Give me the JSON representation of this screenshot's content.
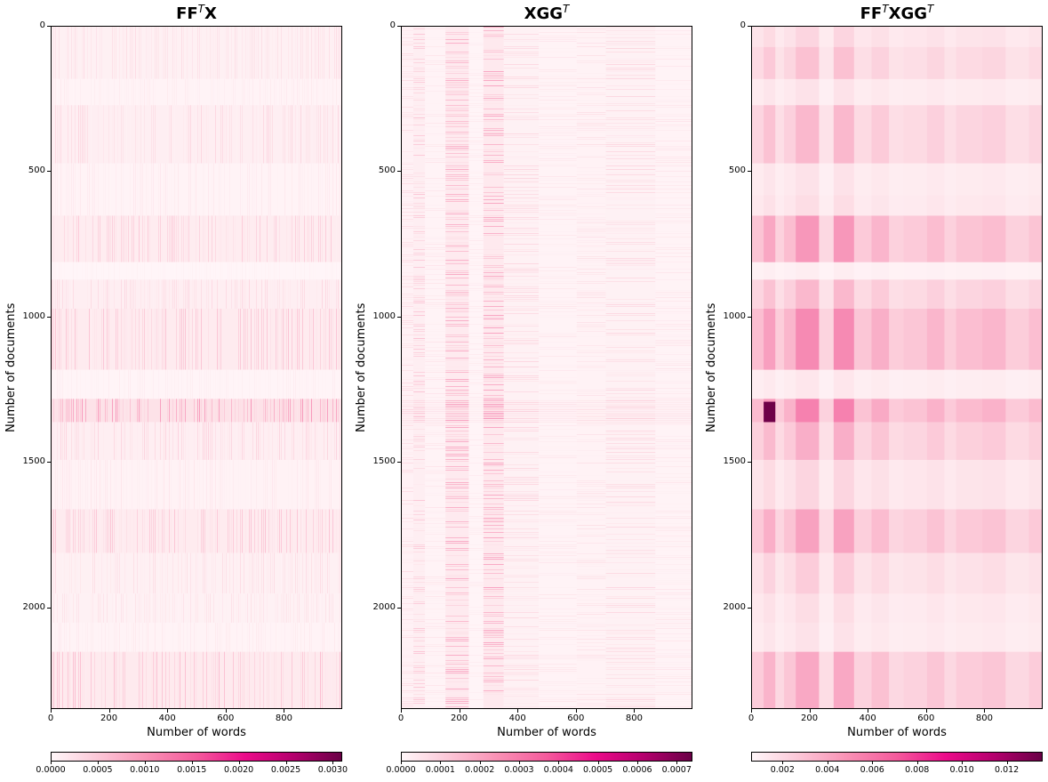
{
  "chart_data": [
    {
      "type": "heatmap",
      "title": "FF",
      "title_sup": "T",
      "title_tail": "X",
      "xlabel": "Number of words",
      "ylabel": "Number of documents",
      "xlim": [
        0,
        1000
      ],
      "ylim": [
        2350,
        0
      ],
      "x_ticks": [
        "0",
        "200",
        "400",
        "600",
        "800"
      ],
      "y_ticks": [
        "0",
        "500",
        "1000",
        "1500",
        "2000"
      ],
      "colorbar": {
        "min": 0.0,
        "max": 0.0031,
        "ticks": [
          "0.0000",
          "0.0005",
          "0.0010",
          "0.0015",
          "0.0020",
          "0.0025",
          "0.0030"
        ]
      },
      "colormap": "RdPu",
      "pattern": "column-striped",
      "row_bands": [
        {
          "from": 0,
          "to": 180,
          "level": 0.12
        },
        {
          "from": 180,
          "to": 270,
          "level": 0.06
        },
        {
          "from": 270,
          "to": 470,
          "level": 0.14
        },
        {
          "from": 470,
          "to": 650,
          "level": 0.07
        },
        {
          "from": 650,
          "to": 810,
          "level": 0.18
        },
        {
          "from": 810,
          "to": 870,
          "level": 0.03
        },
        {
          "from": 870,
          "to": 970,
          "level": 0.14
        },
        {
          "from": 970,
          "to": 1180,
          "level": 0.2
        },
        {
          "from": 1180,
          "to": 1280,
          "level": 0.05
        },
        {
          "from": 1280,
          "to": 1360,
          "level": 0.35
        },
        {
          "from": 1360,
          "to": 1490,
          "level": 0.15
        },
        {
          "from": 1490,
          "to": 1660,
          "level": 0.08
        },
        {
          "from": 1660,
          "to": 1810,
          "level": 0.2
        },
        {
          "from": 1810,
          "to": 1950,
          "level": 0.12
        },
        {
          "from": 1950,
          "to": 2050,
          "level": 0.1
        },
        {
          "from": 2050,
          "to": 2150,
          "level": 0.07
        },
        {
          "from": 2150,
          "to": 2350,
          "level": 0.22
        }
      ]
    },
    {
      "type": "heatmap",
      "title": "XGG",
      "title_sup": "T",
      "title_tail": "",
      "xlabel": "Number of words",
      "ylabel": "Number of documents",
      "xlim": [
        0,
        1000
      ],
      "ylim": [
        2350,
        0
      ],
      "x_ticks": [
        "0",
        "200",
        "400",
        "600",
        "800"
      ],
      "y_ticks": [
        "0",
        "500",
        "1000",
        "1500",
        "2000"
      ],
      "colorbar": {
        "min": 0.0,
        "max": 0.00074,
        "ticks": [
          "0.0000",
          "0.0001",
          "0.0002",
          "0.0003",
          "0.0004",
          "0.0005",
          "0.0006",
          "0.0007"
        ]
      },
      "colormap": "RdPu",
      "pattern": "row-striped",
      "column_bands": [
        {
          "from": 0,
          "to": 40,
          "level": 0.12
        },
        {
          "from": 40,
          "to": 80,
          "level": 0.2
        },
        {
          "from": 80,
          "to": 150,
          "level": 0.08
        },
        {
          "from": 150,
          "to": 230,
          "level": 0.28
        },
        {
          "from": 230,
          "to": 280,
          "level": 0.06
        },
        {
          "from": 280,
          "to": 350,
          "level": 0.3
        },
        {
          "from": 350,
          "to": 470,
          "level": 0.14
        },
        {
          "from": 470,
          "to": 600,
          "level": 0.08
        },
        {
          "from": 600,
          "to": 700,
          "level": 0.1
        },
        {
          "from": 700,
          "to": 870,
          "level": 0.14
        },
        {
          "from": 870,
          "to": 1000,
          "level": 0.08
        }
      ],
      "highlight_rows": [
        {
          "from": 1285,
          "to": 1360,
          "level": 0.6
        }
      ]
    },
    {
      "type": "heatmap",
      "title": "FF",
      "title_sup": "T",
      "title_tail": "XGG",
      "title_sup2": "T",
      "xlabel": "Number of words",
      "ylabel": "Number of documents",
      "xlim": [
        0,
        1000
      ],
      "ylim": [
        2350,
        0
      ],
      "x_ticks": [
        "0",
        "200",
        "400",
        "600",
        "800"
      ],
      "y_ticks": [
        "0",
        "500",
        "1000",
        "1500",
        "2000"
      ],
      "colorbar": {
        "min": 0.0006,
        "max": 0.0136,
        "ticks": [
          "0.002",
          "0.004",
          "0.006",
          "0.008",
          "0.010",
          "0.012"
        ]
      },
      "colormap": "RdPu",
      "pattern": "block",
      "row_edges": [
        0,
        70,
        180,
        270,
        470,
        580,
        650,
        810,
        870,
        970,
        1180,
        1280,
        1360,
        1490,
        1660,
        1810,
        1950,
        2050,
        2150,
        2350
      ],
      "col_edges": [
        0,
        40,
        80,
        110,
        150,
        230,
        280,
        350,
        410,
        470,
        520,
        600,
        660,
        700,
        790,
        870,
        950,
        1000
      ],
      "row_levels": [
        0.15,
        0.22,
        0.1,
        0.25,
        0.1,
        0.12,
        0.35,
        0.05,
        0.25,
        0.38,
        0.08,
        0.4,
        0.28,
        0.15,
        0.32,
        0.18,
        0.12,
        0.1,
        0.3
      ],
      "col_levels": [
        0.9,
        1.3,
        0.7,
        1.0,
        1.5,
        0.6,
        1.5,
        0.8,
        1.1,
        0.7,
        0.8,
        1.0,
        0.7,
        0.9,
        1.0,
        0.7,
        0.9
      ],
      "peak_cell": {
        "x0": 40,
        "x1": 80,
        "y0": 1290,
        "y1": 1360,
        "level": 1.0
      }
    }
  ]
}
